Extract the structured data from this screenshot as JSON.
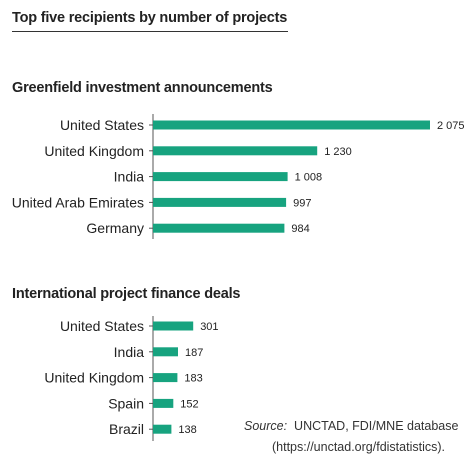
{
  "title": "Top five recipients by number of projects",
  "source_label": "Source:",
  "source_text": "UNCTAD, FDI/MNE database",
  "source_url": "(https://unctad.org/fdistatistics).",
  "colors": {
    "bar": "#17a37f",
    "text": "#222222"
  },
  "chart_data": [
    {
      "type": "bar",
      "orientation": "horizontal",
      "title": "Greenfield investment announcements",
      "categories": [
        "United States",
        "United Kingdom",
        "India",
        "United Arab Emirates",
        "Germany"
      ],
      "values": [
        2075,
        1230,
        1008,
        997,
        984
      ],
      "value_labels": [
        "2 075",
        "1 230",
        "1 008",
        "997",
        "984"
      ],
      "xlim": [
        0,
        2075
      ],
      "grid": false,
      "legend": "none"
    },
    {
      "type": "bar",
      "orientation": "horizontal",
      "title": "International project finance deals",
      "categories": [
        "United States",
        "India",
        "United Kingdom",
        "Spain",
        "Brazil"
      ],
      "values": [
        301,
        187,
        183,
        152,
        138
      ],
      "value_labels": [
        "301",
        "187",
        "183",
        "152",
        "138"
      ],
      "xlim": [
        0,
        2075
      ],
      "grid": false,
      "legend": "none"
    }
  ]
}
